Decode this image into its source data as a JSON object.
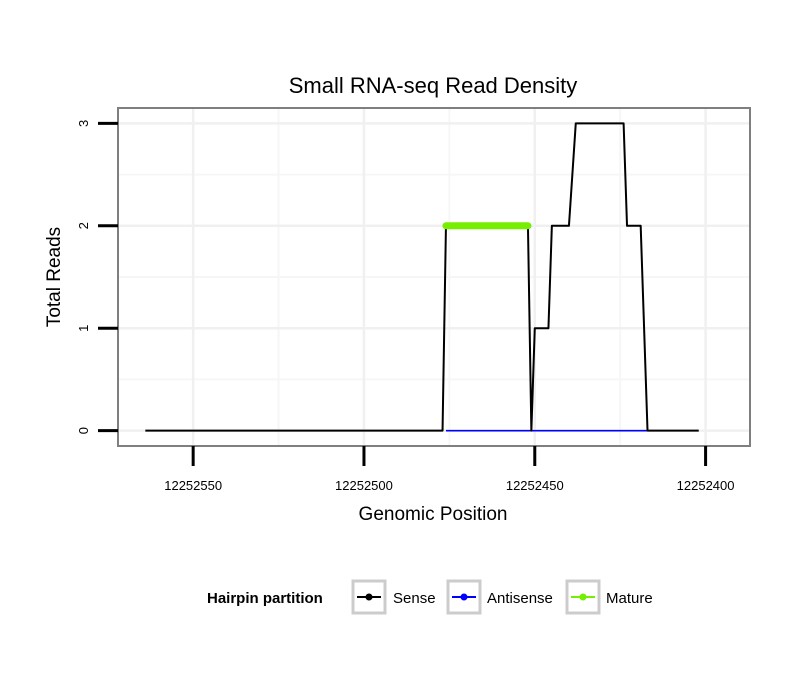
{
  "chart_data": {
    "type": "line",
    "title": "Small RNA-seq Read Density",
    "xlabel": "Genomic Position",
    "ylabel": "Total Reads",
    "xlim": [
      12252572,
      12252387
    ],
    "ylim": [
      -0.15,
      3.15
    ],
    "x_reversed": true,
    "x_ticks": [
      12252550,
      12252500,
      12252450,
      12252400
    ],
    "x_tick_labels": [
      "12252550",
      "12252500",
      "12252450",
      "12252400"
    ],
    "y_ticks": [
      0,
      1,
      2,
      3
    ],
    "y_tick_labels": [
      "0",
      "1",
      "2",
      "3"
    ],
    "grid": true,
    "legend": {
      "title": "Hairpin partition",
      "position": "bottom",
      "entries": [
        "Sense",
        "Antisense",
        "Mature"
      ]
    },
    "series": [
      {
        "name": "Sense",
        "color": "#000000",
        "points": [
          [
            12252564,
            0
          ],
          [
            12252477,
            0
          ],
          [
            12252476,
            2
          ],
          [
            12252452,
            2
          ],
          [
            12252451,
            0
          ],
          [
            12252450,
            1
          ],
          [
            12252446,
            1
          ],
          [
            12252445,
            2
          ],
          [
            12252440,
            2
          ],
          [
            12252438,
            3
          ],
          [
            12252424,
            3
          ],
          [
            12252423,
            2
          ],
          [
            12252419,
            2
          ],
          [
            12252417,
            0
          ],
          [
            12252402,
            0
          ]
        ]
      },
      {
        "name": "Antisense",
        "color": "#0000ff",
        "points": [
          [
            12252476,
            0
          ],
          [
            12252417,
            0
          ]
        ]
      },
      {
        "name": "Mature",
        "color": "#76ee00",
        "points": [
          [
            12252476,
            2
          ],
          [
            12252452,
            2
          ]
        ]
      }
    ]
  }
}
